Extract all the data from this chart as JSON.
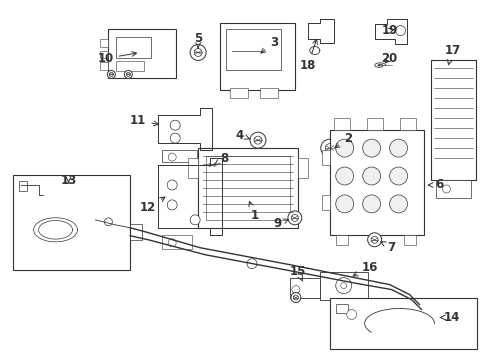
{
  "bg_color": "#ffffff",
  "line_color": "#333333",
  "label_color": "#111111",
  "figsize": [
    4.89,
    3.6
  ],
  "dpi": 100
}
